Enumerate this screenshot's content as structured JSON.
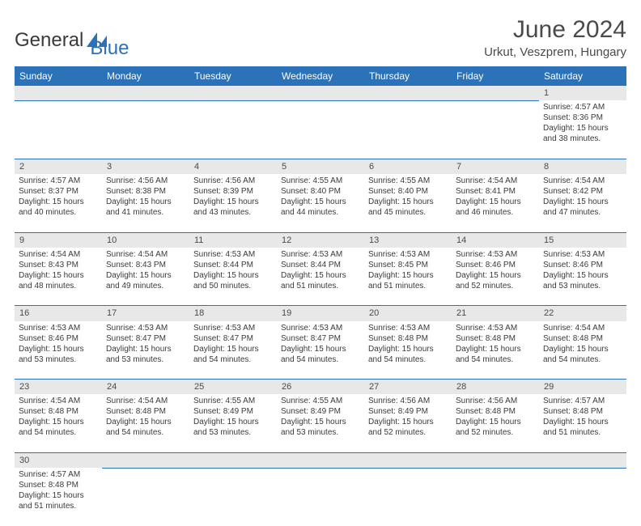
{
  "colors": {
    "primary": "#2b72b9",
    "text": "#3a3a3a",
    "daynum_bg": "#e8e8e8",
    "background": "#ffffff"
  },
  "typography": {
    "title_fontsize_pt": 30,
    "location_fontsize_pt": 15,
    "header_fontsize_pt": 12,
    "daynum_fontsize_pt": 11,
    "body_fontsize_pt": 10,
    "font_family": "Arial"
  },
  "logo": {
    "text_general": "General",
    "text_blue": "Blue",
    "icon_fill": "#2b72b9"
  },
  "title": "June 2024",
  "location": "Urkut, Veszprem, Hungary",
  "calendar": {
    "type": "table",
    "columns": [
      "Sunday",
      "Monday",
      "Tuesday",
      "Wednesday",
      "Thursday",
      "Friday",
      "Saturday"
    ],
    "weeks": [
      [
        null,
        null,
        null,
        null,
        null,
        null,
        {
          "d": "1",
          "sr": "Sunrise: 4:57 AM",
          "ss": "Sunset: 8:36 PM",
          "dl1": "Daylight: 15 hours",
          "dl2": "and 38 minutes."
        }
      ],
      [
        {
          "d": "2",
          "sr": "Sunrise: 4:57 AM",
          "ss": "Sunset: 8:37 PM",
          "dl1": "Daylight: 15 hours",
          "dl2": "and 40 minutes."
        },
        {
          "d": "3",
          "sr": "Sunrise: 4:56 AM",
          "ss": "Sunset: 8:38 PM",
          "dl1": "Daylight: 15 hours",
          "dl2": "and 41 minutes."
        },
        {
          "d": "4",
          "sr": "Sunrise: 4:56 AM",
          "ss": "Sunset: 8:39 PM",
          "dl1": "Daylight: 15 hours",
          "dl2": "and 43 minutes."
        },
        {
          "d": "5",
          "sr": "Sunrise: 4:55 AM",
          "ss": "Sunset: 8:40 PM",
          "dl1": "Daylight: 15 hours",
          "dl2": "and 44 minutes."
        },
        {
          "d": "6",
          "sr": "Sunrise: 4:55 AM",
          "ss": "Sunset: 8:40 PM",
          "dl1": "Daylight: 15 hours",
          "dl2": "and 45 minutes."
        },
        {
          "d": "7",
          "sr": "Sunrise: 4:54 AM",
          "ss": "Sunset: 8:41 PM",
          "dl1": "Daylight: 15 hours",
          "dl2": "and 46 minutes."
        },
        {
          "d": "8",
          "sr": "Sunrise: 4:54 AM",
          "ss": "Sunset: 8:42 PM",
          "dl1": "Daylight: 15 hours",
          "dl2": "and 47 minutes."
        }
      ],
      [
        {
          "d": "9",
          "sr": "Sunrise: 4:54 AM",
          "ss": "Sunset: 8:43 PM",
          "dl1": "Daylight: 15 hours",
          "dl2": "and 48 minutes."
        },
        {
          "d": "10",
          "sr": "Sunrise: 4:54 AM",
          "ss": "Sunset: 8:43 PM",
          "dl1": "Daylight: 15 hours",
          "dl2": "and 49 minutes."
        },
        {
          "d": "11",
          "sr": "Sunrise: 4:53 AM",
          "ss": "Sunset: 8:44 PM",
          "dl1": "Daylight: 15 hours",
          "dl2": "and 50 minutes."
        },
        {
          "d": "12",
          "sr": "Sunrise: 4:53 AM",
          "ss": "Sunset: 8:44 PM",
          "dl1": "Daylight: 15 hours",
          "dl2": "and 51 minutes."
        },
        {
          "d": "13",
          "sr": "Sunrise: 4:53 AM",
          "ss": "Sunset: 8:45 PM",
          "dl1": "Daylight: 15 hours",
          "dl2": "and 51 minutes."
        },
        {
          "d": "14",
          "sr": "Sunrise: 4:53 AM",
          "ss": "Sunset: 8:46 PM",
          "dl1": "Daylight: 15 hours",
          "dl2": "and 52 minutes."
        },
        {
          "d": "15",
          "sr": "Sunrise: 4:53 AM",
          "ss": "Sunset: 8:46 PM",
          "dl1": "Daylight: 15 hours",
          "dl2": "and 53 minutes."
        }
      ],
      [
        {
          "d": "16",
          "sr": "Sunrise: 4:53 AM",
          "ss": "Sunset: 8:46 PM",
          "dl1": "Daylight: 15 hours",
          "dl2": "and 53 minutes."
        },
        {
          "d": "17",
          "sr": "Sunrise: 4:53 AM",
          "ss": "Sunset: 8:47 PM",
          "dl1": "Daylight: 15 hours",
          "dl2": "and 53 minutes."
        },
        {
          "d": "18",
          "sr": "Sunrise: 4:53 AM",
          "ss": "Sunset: 8:47 PM",
          "dl1": "Daylight: 15 hours",
          "dl2": "and 54 minutes."
        },
        {
          "d": "19",
          "sr": "Sunrise: 4:53 AM",
          "ss": "Sunset: 8:47 PM",
          "dl1": "Daylight: 15 hours",
          "dl2": "and 54 minutes."
        },
        {
          "d": "20",
          "sr": "Sunrise: 4:53 AM",
          "ss": "Sunset: 8:48 PM",
          "dl1": "Daylight: 15 hours",
          "dl2": "and 54 minutes."
        },
        {
          "d": "21",
          "sr": "Sunrise: 4:53 AM",
          "ss": "Sunset: 8:48 PM",
          "dl1": "Daylight: 15 hours",
          "dl2": "and 54 minutes."
        },
        {
          "d": "22",
          "sr": "Sunrise: 4:54 AM",
          "ss": "Sunset: 8:48 PM",
          "dl1": "Daylight: 15 hours",
          "dl2": "and 54 minutes."
        }
      ],
      [
        {
          "d": "23",
          "sr": "Sunrise: 4:54 AM",
          "ss": "Sunset: 8:48 PM",
          "dl1": "Daylight: 15 hours",
          "dl2": "and 54 minutes."
        },
        {
          "d": "24",
          "sr": "Sunrise: 4:54 AM",
          "ss": "Sunset: 8:48 PM",
          "dl1": "Daylight: 15 hours",
          "dl2": "and 54 minutes."
        },
        {
          "d": "25",
          "sr": "Sunrise: 4:55 AM",
          "ss": "Sunset: 8:49 PM",
          "dl1": "Daylight: 15 hours",
          "dl2": "and 53 minutes."
        },
        {
          "d": "26",
          "sr": "Sunrise: 4:55 AM",
          "ss": "Sunset: 8:49 PM",
          "dl1": "Daylight: 15 hours",
          "dl2": "and 53 minutes."
        },
        {
          "d": "27",
          "sr": "Sunrise: 4:56 AM",
          "ss": "Sunset: 8:49 PM",
          "dl1": "Daylight: 15 hours",
          "dl2": "and 52 minutes."
        },
        {
          "d": "28",
          "sr": "Sunrise: 4:56 AM",
          "ss": "Sunset: 8:48 PM",
          "dl1": "Daylight: 15 hours",
          "dl2": "and 52 minutes."
        },
        {
          "d": "29",
          "sr": "Sunrise: 4:57 AM",
          "ss": "Sunset: 8:48 PM",
          "dl1": "Daylight: 15 hours",
          "dl2": "and 51 minutes."
        }
      ],
      [
        {
          "d": "30",
          "sr": "Sunrise: 4:57 AM",
          "ss": "Sunset: 8:48 PM",
          "dl1": "Daylight: 15 hours",
          "dl2": "and 51 minutes."
        },
        null,
        null,
        null,
        null,
        null,
        null
      ]
    ]
  }
}
